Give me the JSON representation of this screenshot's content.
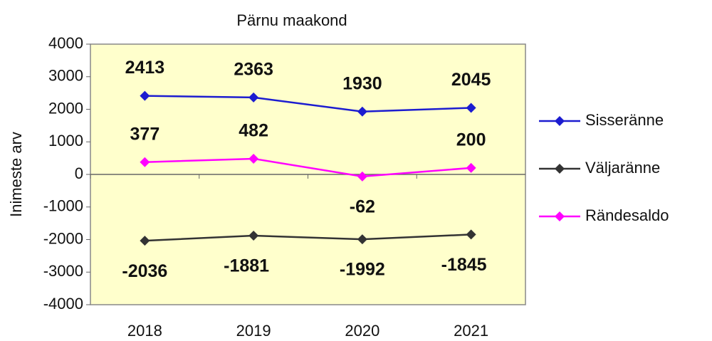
{
  "chart_data": {
    "type": "line",
    "title": "Pärnu maakond",
    "y_label": "Inimeste arv",
    "categories": [
      "2018",
      "2019",
      "2020",
      "2021"
    ],
    "series": [
      {
        "name": "Sisseränne",
        "color": "#1c1cd0",
        "values": [
          2413,
          2363,
          1930,
          2045
        ]
      },
      {
        "name": "Väljaränne",
        "color": "#333333",
        "values": [
          -2036,
          -1881,
          -1992,
          -1845
        ]
      },
      {
        "name": "Rändesaldo",
        "color": "#ff00ff",
        "values": [
          377,
          482,
          -62,
          200
        ]
      }
    ],
    "ylim": [
      -4000,
      4000
    ],
    "yticks": [
      -4000,
      -3000,
      -2000,
      -1000,
      0,
      1000,
      2000,
      3000,
      4000
    ],
    "grid": false,
    "legend": "right",
    "plot_background": "#ffffcc"
  }
}
